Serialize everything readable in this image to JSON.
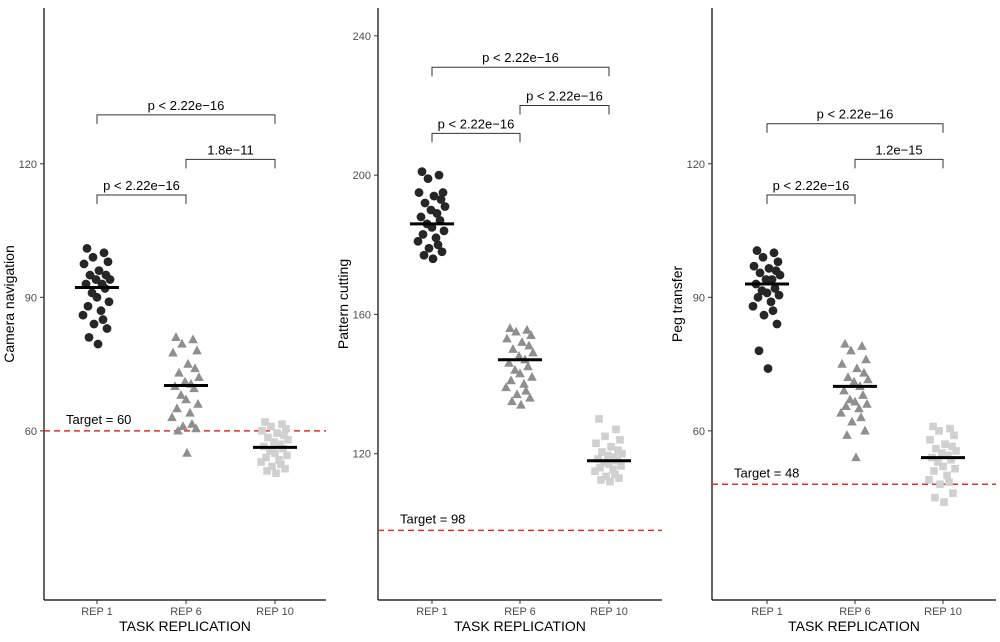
{
  "chart_data": [
    {
      "type": "scatter",
      "ylabel": "Camera navigation",
      "xlabel": "TASK REPLICATION",
      "categories": [
        "REP 1",
        "REP 6",
        "REP 10"
      ],
      "ylim": [
        22,
        155
      ],
      "yticks": [
        60,
        90,
        120
      ],
      "target": {
        "value": 60,
        "label": "Target = 60"
      },
      "series": [
        {
          "category": "REP 1",
          "shape": "circle",
          "color": "#262626",
          "mean": 92.2,
          "values": [
            101,
            100,
            99,
            98,
            97.5,
            96,
            95,
            95,
            94,
            94,
            93,
            93,
            92,
            91,
            90,
            89,
            88,
            87,
            86,
            85,
            84,
            83,
            81,
            79.5
          ]
        },
        {
          "category": "REP 6",
          "shape": "triangle",
          "color": "#8f8f8f",
          "mean": 70.2,
          "values": [
            81,
            80.5,
            79.5,
            78,
            77.5,
            75,
            74,
            73,
            72,
            71,
            70.5,
            70,
            69.5,
            68,
            67,
            66,
            65,
            64,
            63,
            61.5,
            61,
            60.5,
            60,
            55
          ]
        },
        {
          "category": "REP 10",
          "shape": "square",
          "color": "#d0d0d0",
          "mean": 56.3,
          "values": [
            62,
            61.5,
            61,
            60.5,
            60,
            59.5,
            59,
            58.5,
            58,
            57.5,
            57,
            56.5,
            56,
            55.5,
            55,
            54.5,
            54,
            53.5,
            53,
            52.5,
            52,
            51.5,
            51,
            50.5
          ]
        }
      ],
      "comparisons": [
        {
          "from": "REP 1",
          "to": "REP 6",
          "y": 113,
          "label": "p < 2.22e−16"
        },
        {
          "from": "REP 6",
          "to": "REP 10",
          "y": 121,
          "label": "1.8e−11"
        },
        {
          "from": "REP 1",
          "to": "REP 10",
          "y": 131,
          "label": "p < 2.22e−16"
        }
      ]
    },
    {
      "type": "scatter",
      "ylabel": "Pattern cutting",
      "xlabel": "TASK REPLICATION",
      "categories": [
        "REP 1",
        "REP 6",
        "REP 10"
      ],
      "ylim": [
        78,
        248
      ],
      "yticks": [
        120,
        160,
        200,
        240
      ],
      "target": {
        "value": 98,
        "label": "Target = 98"
      },
      "series": [
        {
          "category": "REP 1",
          "shape": "circle",
          "color": "#262626",
          "mean": 186,
          "values": [
            201,
            200,
            199,
            195,
            195,
            194,
            193,
            192,
            191,
            190,
            189,
            188,
            187,
            186,
            185,
            184,
            183,
            182,
            181,
            180,
            179,
            178,
            177,
            176
          ]
        },
        {
          "category": "REP 6",
          "shape": "triangle",
          "color": "#8f8f8f",
          "mean": 147,
          "values": [
            156,
            155.5,
            155,
            154,
            153,
            152,
            151,
            150,
            149,
            148,
            147,
            146,
            145,
            144,
            143,
            142,
            141,
            140,
            139,
            138,
            137,
            136,
            135,
            134
          ]
        },
        {
          "category": "REP 10",
          "shape": "square",
          "color": "#d0d0d0",
          "mean": 118,
          "values": [
            130,
            127,
            125,
            124,
            123,
            122,
            121,
            120.5,
            120,
            119.5,
            119,
            118.5,
            118,
            117.5,
            117,
            116.5,
            116,
            115.5,
            115,
            114,
            113.5,
            113,
            112.5,
            112
          ]
        }
      ],
      "comparisons": [
        {
          "from": "REP 1",
          "to": "REP 6",
          "y": 212,
          "label": "p < 2.22e−16"
        },
        {
          "from": "REP 6",
          "to": "REP 10",
          "y": 220,
          "label": "p < 2.22e−16"
        },
        {
          "from": "REP 1",
          "to": "REP 10",
          "y": 231,
          "label": "p < 2.22e−16"
        }
      ]
    },
    {
      "type": "scatter",
      "ylabel": "Peg transfer",
      "xlabel": "TASK REPLICATION",
      "categories": [
        "REP 1",
        "REP 6",
        "REP 10"
      ],
      "ylim": [
        22,
        155
      ],
      "yticks": [
        60,
        90,
        120
      ],
      "target": {
        "value": 48,
        "label": "Target = 48"
      },
      "series": [
        {
          "category": "REP 1",
          "shape": "circle",
          "color": "#262626",
          "mean": 93,
          "values": [
            100.5,
            100,
            99,
            98,
            97,
            96.5,
            96,
            95.5,
            95,
            94,
            94,
            93,
            92,
            91.5,
            91,
            90.5,
            90,
            89,
            88,
            87,
            86,
            84,
            78,
            74
          ]
        },
        {
          "category": "REP 6",
          "shape": "triangle",
          "color": "#8f8f8f",
          "mean": 70,
          "values": [
            79.5,
            79,
            78,
            76,
            75,
            74,
            73,
            72,
            71.5,
            71,
            70,
            69,
            68,
            67,
            66.5,
            66,
            65.5,
            65,
            64,
            63,
            62,
            60,
            59,
            54
          ]
        },
        {
          "category": "REP 10",
          "shape": "square",
          "color": "#d0d0d0",
          "mean": 54,
          "values": [
            61,
            60.5,
            60,
            59,
            58,
            57,
            56.5,
            56,
            55.5,
            55,
            54.5,
            54,
            53.5,
            53,
            52,
            51.5,
            51,
            50,
            49,
            48.5,
            48,
            46,
            45,
            44
          ]
        }
      ],
      "comparisons": [
        {
          "from": "REP 1",
          "to": "REP 6",
          "y": 113,
          "label": "p < 2.22e−16"
        },
        {
          "from": "REP 6",
          "to": "REP 10",
          "y": 121,
          "label": "1.2e−15"
        },
        {
          "from": "REP 1",
          "to": "REP 10",
          "y": 129,
          "label": "p < 2.22e−16"
        }
      ]
    }
  ]
}
